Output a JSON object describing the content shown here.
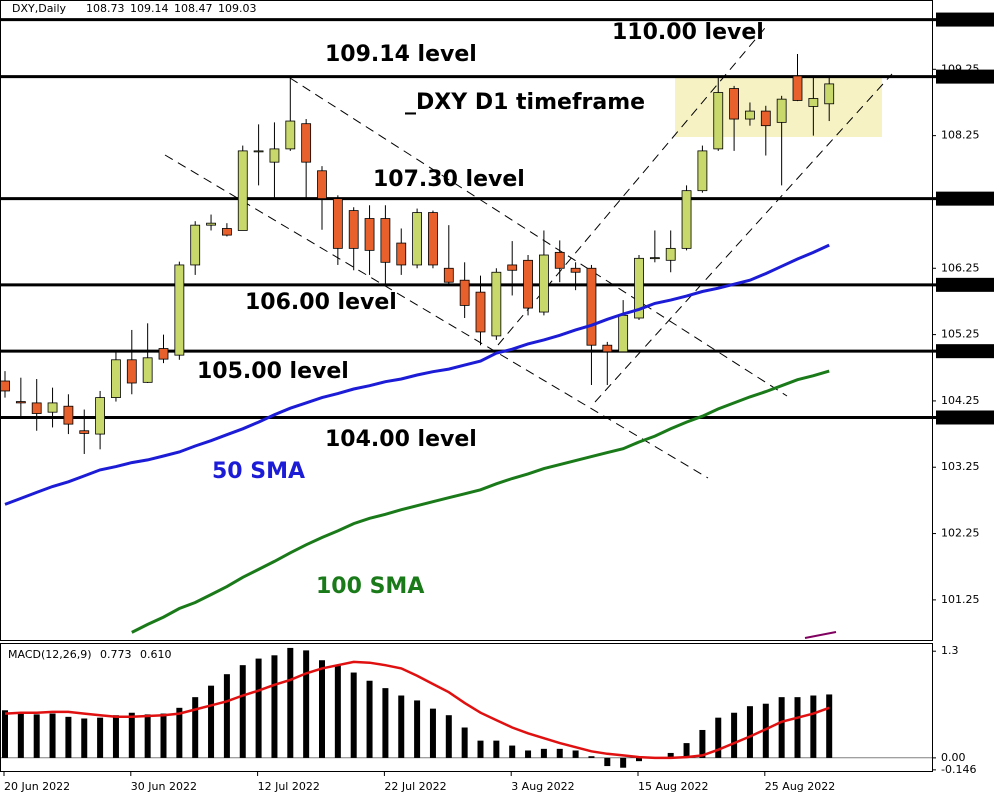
{
  "chart_data": [
    {
      "type": "candlestick",
      "title": "DXY,Daily",
      "annotation": "_DXY D1 timeframe",
      "open": [
        104.55,
        104.24,
        104.22,
        104.08,
        104.17,
        103.8,
        103.75,
        104.3,
        104.87,
        104.53,
        105.04,
        104.94,
        106.3,
        106.9,
        106.85,
        106.82,
        108.02,
        107.85,
        108.05,
        108.43,
        107.72,
        107.3,
        107.12,
        107.0,
        107.0,
        106.63,
        106.3,
        107.09,
        106.25,
        106.07,
        105.89,
        105.23,
        106.3,
        106.37,
        105.59,
        106.49,
        106.25,
        106.25,
        105.09,
        104.99,
        105.5,
        106.4,
        106.37,
        106.55,
        107.42,
        108.05,
        108.96,
        108.5,
        108.62,
        108.45,
        109.15,
        108.69,
        108.73
      ],
      "high": [
        104.7,
        104.6,
        104.58,
        104.45,
        104.35,
        104.12,
        104.4,
        105.0,
        105.32,
        105.42,
        105.25,
        106.35,
        106.96,
        107.06,
        106.93,
        108.1,
        108.42,
        108.45,
        109.14,
        108.5,
        107.79,
        107.35,
        107.17,
        107.2,
        107.2,
        106.85,
        107.15,
        107.12,
        106.9,
        106.34,
        106.14,
        106.25,
        106.66,
        106.45,
        106.82,
        106.67,
        106.34,
        106.3,
        105.14,
        105.77,
        106.45,
        106.82,
        106.82,
        107.5,
        108.1,
        109.14,
        109.0,
        108.75,
        108.7,
        108.85,
        109.48,
        109.14,
        109.14
      ],
      "low": [
        104.3,
        103.98,
        103.8,
        103.85,
        103.75,
        103.45,
        103.52,
        104.24,
        104.35,
        104.52,
        104.82,
        104.87,
        106.15,
        106.82,
        106.73,
        106.82,
        107.5,
        107.3,
        108.02,
        107.3,
        106.83,
        106.3,
        106.22,
        106.15,
        105.98,
        106.15,
        106.25,
        106.25,
        106.0,
        105.5,
        105.09,
        105.17,
        105.84,
        105.54,
        105.54,
        106.04,
        105.92,
        104.49,
        104.49,
        104.99,
        105.47,
        106.34,
        106.19,
        106.52,
        107.39,
        108.02,
        108.02,
        108.4,
        107.95,
        107.5,
        108.77,
        108.25,
        108.47
      ],
      "close": [
        104.4,
        104.22,
        104.06,
        104.22,
        103.9,
        103.76,
        104.3,
        104.87,
        104.52,
        104.9,
        104.88,
        106.3,
        106.9,
        106.93,
        106.75,
        108.02,
        108.02,
        108.05,
        108.47,
        107.85,
        107.3,
        106.55,
        106.55,
        106.52,
        106.34,
        106.3,
        107.09,
        106.3,
        106.04,
        105.69,
        105.29,
        106.19,
        106.22,
        105.65,
        106.45,
        106.25,
        106.19,
        105.09,
        104.99,
        105.54,
        106.4,
        106.41,
        106.55,
        107.42,
        108.02,
        108.9,
        108.5,
        108.62,
        108.4,
        108.8,
        108.78,
        108.81,
        109.03
      ],
      "up_color": "#c9d86b",
      "down_color": "#e8612c",
      "series": [
        {
          "name": "50 SMA",
          "color": "#1c1cd6",
          "values": [
            102.69,
            102.78,
            102.87,
            102.96,
            103.03,
            103.12,
            103.21,
            103.26,
            103.32,
            103.36,
            103.42,
            103.48,
            103.57,
            103.65,
            103.74,
            103.83,
            103.93,
            104.04,
            104.14,
            104.22,
            104.3,
            104.36,
            104.43,
            104.48,
            104.54,
            104.58,
            104.64,
            104.69,
            104.73,
            104.79,
            104.85,
            104.97,
            105.03,
            105.11,
            105.17,
            105.24,
            105.32,
            105.39,
            105.48,
            105.56,
            105.63,
            105.72,
            105.77,
            105.83,
            105.9,
            105.95,
            106.01,
            106.07,
            106.17,
            106.28,
            106.39,
            106.49,
            106.6
          ]
        },
        {
          "name": "100 SMA",
          "color": "#1a7a1a",
          "values": [
            null,
            null,
            null,
            null,
            null,
            null,
            null,
            null,
            100.76,
            100.88,
            100.99,
            101.12,
            101.21,
            101.33,
            101.45,
            101.59,
            101.71,
            101.83,
            101.96,
            102.08,
            102.19,
            102.29,
            102.4,
            102.48,
            102.54,
            102.61,
            102.67,
            102.73,
            102.79,
            102.85,
            102.91,
            103.0,
            103.08,
            103.15,
            103.23,
            103.29,
            103.35,
            103.41,
            103.47,
            103.53,
            103.63,
            103.72,
            103.83,
            103.93,
            104.02,
            104.13,
            104.22,
            104.31,
            104.39,
            104.48,
            104.57,
            104.63,
            104.7
          ]
        }
      ],
      "levels": [
        {
          "value": 110,
          "label": "110.00",
          "text": "110.00 level"
        },
        {
          "value": 109.14,
          "label": "109.14",
          "text": "109.14 level"
        },
        {
          "value": 107.3,
          "label": "107.30",
          "text": "107.30 level"
        },
        {
          "value": 106,
          "label": "106.00",
          "text": "106.00 level"
        },
        {
          "value": 105,
          "label": "105.00",
          "text": "105.00 level"
        },
        {
          "value": 104,
          "label": "104.00",
          "text": "104.00 level"
        }
      ],
      "ylim": [
        100.66,
        110.28
      ],
      "yticks": [
        101.25,
        102.25,
        103.25,
        104.25,
        105.25,
        106.25,
        108.25,
        109.25
      ]
    },
    {
      "type": "macd",
      "title": "MACD(12,26,9)",
      "categories": [
        "20 Jun 2022",
        null,
        null,
        null,
        null,
        null,
        null,
        null,
        "30 Jun 2022",
        null,
        null,
        null,
        null,
        null,
        null,
        null,
        "12 Jul 2022",
        null,
        null,
        null,
        null,
        null,
        null,
        null,
        "22 Jul 2022",
        null,
        null,
        null,
        null,
        null,
        null,
        null,
        "3 Aug 2022",
        null,
        null,
        null,
        null,
        null,
        null,
        null,
        "15 Aug 2022",
        null,
        null,
        null,
        null,
        null,
        null,
        null,
        "25 Aug 2022",
        null,
        null,
        null,
        null
      ],
      "histogram": {
        "color": "#000000",
        "values": [
          0.58,
          0.54,
          0.53,
          0.54,
          0.5,
          0.48,
          0.49,
          0.52,
          0.55,
          0.53,
          0.54,
          0.61,
          0.74,
          0.88,
          1.02,
          1.13,
          1.21,
          1.25,
          1.34,
          1.31,
          1.19,
          1.13,
          1.04,
          0.94,
          0.85,
          0.76,
          0.7,
          0.6,
          0.52,
          0.37,
          0.21,
          0.21,
          0.15,
          0.09,
          0.11,
          0.11,
          0.09,
          0.02,
          -0.1,
          -0.12,
          -0.04,
          0.0,
          0.06,
          0.18,
          0.34,
          0.49,
          0.55,
          0.63,
          0.66,
          0.74,
          0.74,
          0.76,
          0.773
        ]
      },
      "signal": {
        "color": "#e01010",
        "values": [
          0.54,
          0.55,
          0.55,
          0.56,
          0.56,
          0.54,
          0.52,
          0.5,
          0.5,
          0.51,
          0.52,
          0.54,
          0.59,
          0.64,
          0.69,
          0.76,
          0.82,
          0.89,
          0.95,
          1.03,
          1.09,
          1.13,
          1.17,
          1.16,
          1.13,
          1.09,
          1.0,
          0.9,
          0.8,
          0.67,
          0.55,
          0.46,
          0.37,
          0.3,
          0.24,
          0.18,
          0.13,
          0.08,
          0.05,
          0.03,
          0.01,
          0.0,
          0.0,
          0.01,
          0.03,
          0.1,
          0.18,
          0.26,
          0.35,
          0.44,
          0.49,
          0.54,
          0.61
        ],
        "value_labels": [
          null,
          null,
          null,
          null,
          null,
          null,
          null,
          null,
          null,
          null,
          null,
          null,
          null,
          null,
          null,
          null,
          null,
          null,
          null,
          null,
          null,
          null,
          null,
          null,
          null,
          null,
          null,
          null,
          null,
          null,
          null,
          null,
          null,
          null,
          null,
          null,
          null,
          null,
          null,
          null,
          null,
          null,
          null,
          null,
          null,
          null,
          null,
          null,
          null,
          null,
          null,
          null,
          "0.610"
        ]
      },
      "ylim": [
        -0.16,
        1.4
      ],
      "yticks": [
        1.3,
        {
          "value": 0,
          "label": "0.00"
        },
        {
          "value": -0.146,
          "label": "-0.146"
        }
      ]
    }
  ]
}
